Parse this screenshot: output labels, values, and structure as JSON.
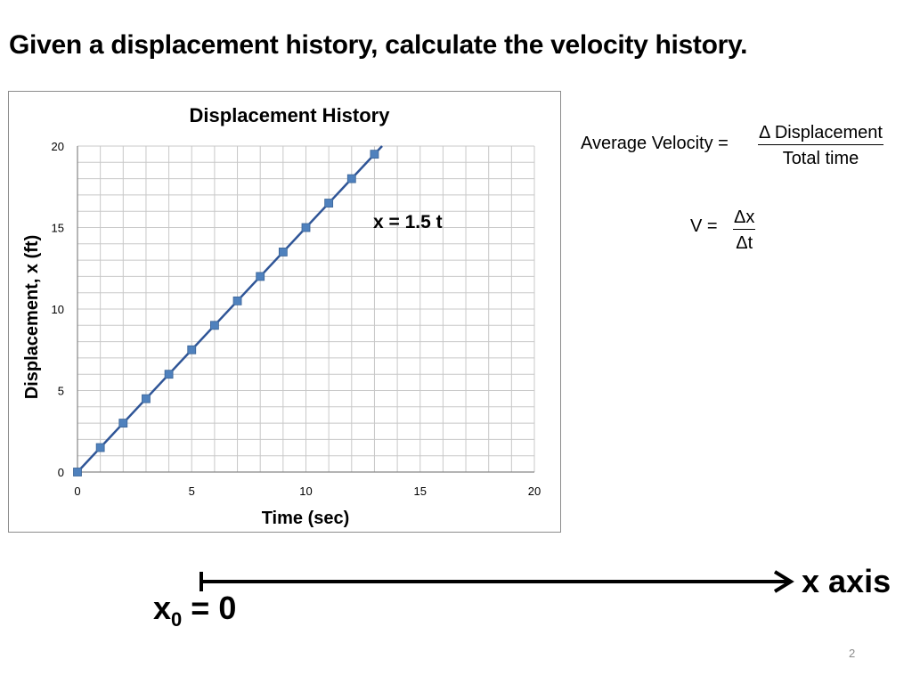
{
  "slide": {
    "title": "Given a displacement history, calculate the velocity history.",
    "number": "2"
  },
  "formulas": {
    "average_velocity_lhs": "Average Velocity =",
    "average_velocity_numerator": "Δ Displacement",
    "average_velocity_denominator": "Total time",
    "v_lhs": "V =",
    "v_numerator": "Δx",
    "v_denominator": "Δt"
  },
  "axis_diagram": {
    "axis_label": "x axis",
    "origin_symbol": "x",
    "origin_subscript": "0",
    "origin_value": "= 0"
  },
  "chart_data": {
    "type": "scatter",
    "title": "Displacement History",
    "xlabel": "Time (sec)",
    "ylabel": "Displacement, x (ft)",
    "xlim": [
      0,
      20
    ],
    "ylim": [
      0,
      20
    ],
    "x_ticks": [
      0,
      5,
      10,
      15,
      20
    ],
    "y_ticks": [
      0,
      5,
      10,
      15,
      20
    ],
    "grid": true,
    "annotation": "x = 1.5 t",
    "series": [
      {
        "x": [
          0,
          1,
          2,
          3,
          4,
          5,
          6,
          7,
          8,
          9,
          10,
          11,
          12,
          13
        ],
        "y": [
          0,
          1.5,
          3,
          4.5,
          6,
          7.5,
          9,
          10.5,
          12,
          13.5,
          15,
          16.5,
          18,
          19.5
        ]
      }
    ],
    "trendline": {
      "slope": 1.5,
      "intercept": 0
    },
    "colors": {
      "marker": "#4f81bd",
      "line": "#2f5597",
      "grid": "#c8c8c8",
      "axis": "#868686"
    }
  }
}
